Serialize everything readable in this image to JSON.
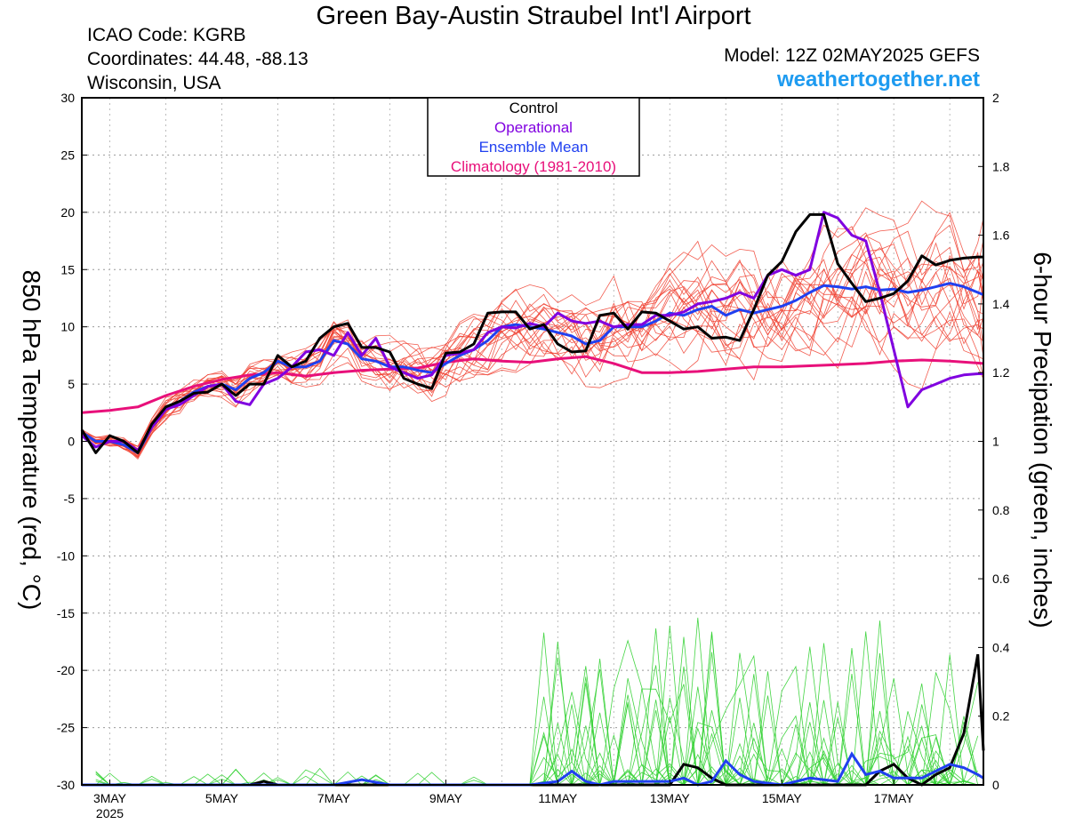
{
  "header": {
    "title": "Green Bay-Austin Straubel Int'l Airport",
    "icao": "ICAO Code: KGRB",
    "coordinates": "Coordinates: 44.48, -88.13",
    "location": "Wisconsin, USA",
    "model": "Model: 12Z 02MAY2025 GEFS",
    "site": "weathertogether.net"
  },
  "colors": {
    "members": "#f04030",
    "precip_members": "#30d030",
    "control": "#000000",
    "operational": "#8000e0",
    "ensemble_mean": "#2040f0",
    "climatology": "#e8107a",
    "site": "#1e9bf0"
  },
  "chart_data": {
    "type": "line",
    "ylabel_left": "850 hPa Temperature (red, °C)",
    "ylabel_right": "6-hour Precipation (green, inches)",
    "ylim_left": [
      -30,
      30
    ],
    "ylim_right": [
      0,
      2
    ],
    "yticks_left": [
      "30",
      "25",
      "20",
      "15",
      "10",
      "5",
      "0",
      "-5",
      "-10",
      "-15",
      "-20",
      "-25",
      "-30"
    ],
    "yticks_right": [
      "2",
      "1.8",
      "1.6",
      "1.4",
      "1.2",
      "1",
      "0.8",
      "0.6",
      "0.4",
      "0.2",
      "0"
    ],
    "xlim_days": [
      2.5,
      18.6
    ],
    "x_tick_labels": [
      {
        "day": 3,
        "label": "3MAY"
      },
      {
        "day": 5,
        "label": "5MAY"
      },
      {
        "day": 7,
        "label": "7MAY"
      },
      {
        "day": 9,
        "label": "9MAY"
      },
      {
        "day": 11,
        "label": "11MAY"
      },
      {
        "day": 13,
        "label": "13MAY"
      },
      {
        "day": 15,
        "label": "15MAY"
      },
      {
        "day": 17,
        "label": "17MAY"
      }
    ],
    "x_year_label": "2025",
    "legend": {
      "placement": "top-center",
      "entries": [
        "Control",
        "Operational",
        "Ensemble Mean",
        "Climatology (1981-2010)"
      ]
    },
    "series": [
      {
        "name": "Control",
        "x": [
          2.5,
          2.75,
          3.0,
          3.25,
          3.5,
          3.75,
          4.0,
          4.25,
          4.5,
          4.75,
          5.0,
          5.25,
          5.5,
          5.75,
          6.0,
          6.25,
          6.5,
          6.75,
          7.0,
          7.25,
          7.5,
          7.75,
          8.0,
          8.25,
          8.5,
          8.75,
          9.0,
          9.25,
          9.5,
          9.75,
          10.0,
          10.25,
          10.5,
          10.75,
          11.0,
          11.25,
          11.5,
          11.75,
          12.0,
          12.25,
          12.5,
          12.75,
          13.0,
          13.25,
          13.5,
          13.75,
          14.0,
          14.25,
          14.5,
          14.75,
          15.0,
          15.25,
          15.5,
          15.75,
          16.0,
          16.25,
          16.5,
          16.75,
          17.0,
          17.25,
          17.5,
          17.75,
          18.0,
          18.25,
          18.5,
          18.6
        ],
        "y": [
          1.0,
          -1.0,
          0.5,
          0.0,
          -1.0,
          1.5,
          3.0,
          3.5,
          4.2,
          4.3,
          5.0,
          4.0,
          5.0,
          5.0,
          7.5,
          6.5,
          7.0,
          9.0,
          10.0,
          10.3,
          8.2,
          8.2,
          7.8,
          5.5,
          5.0,
          4.6,
          7.7,
          7.8,
          8.5,
          11.2,
          11.3,
          11.3,
          9.8,
          10.2,
          8.5,
          7.8,
          7.9,
          11.0,
          11.2,
          9.8,
          11.3,
          11.2,
          10.5,
          9.8,
          10.0,
          9.0,
          9.1,
          8.8,
          11.5,
          14.5,
          15.7,
          18.3,
          19.8,
          19.8,
          15.5,
          13.8,
          12.2,
          12.5,
          12.9,
          14.0,
          16.2,
          15.4,
          15.8,
          16.0,
          16.1,
          16.1
        ]
      },
      {
        "name": "Operational",
        "x": [
          2.5,
          2.75,
          3.0,
          3.25,
          3.5,
          3.75,
          4.0,
          4.25,
          4.5,
          4.75,
          5.0,
          5.25,
          5.5,
          5.75,
          6.0,
          6.25,
          6.5,
          6.75,
          7.0,
          7.25,
          7.5,
          7.75,
          8.0,
          8.25,
          8.5,
          8.75,
          9.0,
          9.25,
          9.5,
          9.75,
          10.0,
          10.25,
          10.5,
          10.75,
          11.0,
          11.25,
          11.5,
          11.75,
          12.0,
          12.25,
          12.5,
          12.75,
          13.0,
          13.25,
          13.5,
          13.75,
          14.0,
          14.25,
          14.5,
          14.75,
          15.0,
          15.25,
          15.5,
          15.75,
          16.0,
          16.25,
          16.5,
          16.75,
          17.0,
          17.25,
          17.5,
          17.75,
          18.0,
          18.25,
          18.5,
          18.6
        ],
        "y": [
          0.5,
          -0.5,
          0.0,
          0.0,
          -0.8,
          1.2,
          2.8,
          3.2,
          4.0,
          4.8,
          5.0,
          3.5,
          3.2,
          5.0,
          5.5,
          6.5,
          7.8,
          8.0,
          7.5,
          9.5,
          7.5,
          9.0,
          6.5,
          6.0,
          5.5,
          5.8,
          7.5,
          7.7,
          8.0,
          9.5,
          10.0,
          9.9,
          10.3,
          10.0,
          11.2,
          10.5,
          10.3,
          10.5,
          10.0,
          10.2,
          10.2,
          11.0,
          11.0,
          11.3,
          12.0,
          12.2,
          12.5,
          13.0,
          12.5,
          14.5,
          15.0,
          14.5,
          15.0,
          20.0,
          19.5,
          18.0,
          17.5,
          13.0,
          8.0,
          3.0,
          4.5,
          5.0,
          5.5,
          5.8,
          5.9,
          5.9
        ]
      },
      {
        "name": "Ensemble Mean",
        "x": [
          2.5,
          2.75,
          3.0,
          3.25,
          3.5,
          3.75,
          4.0,
          4.25,
          4.5,
          4.75,
          5.0,
          5.25,
          5.5,
          5.75,
          6.0,
          6.25,
          6.5,
          6.75,
          7.0,
          7.25,
          7.5,
          7.75,
          8.0,
          8.25,
          8.5,
          8.75,
          9.0,
          9.25,
          9.5,
          9.75,
          10.0,
          10.25,
          10.5,
          10.75,
          11.0,
          11.25,
          11.5,
          11.75,
          12.0,
          12.25,
          12.5,
          12.75,
          13.0,
          13.25,
          13.5,
          13.75,
          14.0,
          14.25,
          14.5,
          14.75,
          15.0,
          15.25,
          15.5,
          15.75,
          16.0,
          16.25,
          16.5,
          16.75,
          17.0,
          17.25,
          17.5,
          17.75,
          18.0,
          18.25,
          18.5,
          18.6
        ],
        "y": [
          0.8,
          0.0,
          0.0,
          -0.3,
          -1.0,
          1.2,
          2.8,
          3.5,
          4.3,
          4.8,
          5.0,
          4.5,
          5.5,
          6.0,
          7.0,
          6.5,
          6.5,
          7.0,
          8.8,
          8.5,
          7.2,
          7.0,
          6.5,
          6.5,
          6.2,
          6.0,
          6.8,
          7.5,
          8.0,
          8.8,
          10.0,
          10.2,
          10.0,
          9.8,
          9.5,
          9.2,
          8.5,
          8.8,
          10.0,
          10.0,
          10.0,
          10.5,
          11.2,
          11.0,
          11.5,
          11.8,
          11.0,
          11.5,
          11.2,
          11.5,
          11.8,
          12.3,
          13.0,
          13.6,
          13.5,
          13.3,
          13.5,
          13.2,
          13.3,
          13.0,
          13.2,
          13.5,
          13.8,
          13.5,
          13.0,
          12.8
        ]
      },
      {
        "name": "Climatology (1981-2010)",
        "x": [
          2.5,
          3.0,
          3.5,
          4.0,
          4.5,
          5.0,
          5.5,
          6.0,
          6.5,
          7.0,
          7.5,
          8.0,
          8.5,
          9.0,
          9.5,
          10.0,
          10.5,
          11.0,
          11.5,
          12.0,
          12.5,
          13.0,
          13.5,
          14.0,
          14.5,
          15.0,
          15.5,
          16.0,
          16.5,
          17.0,
          17.5,
          18.0,
          18.6
        ],
        "y": [
          2.5,
          2.7,
          3.0,
          4.0,
          4.8,
          5.4,
          5.8,
          6.0,
          5.7,
          6.0,
          6.2,
          6.3,
          6.4,
          6.9,
          7.2,
          7.0,
          6.9,
          7.2,
          7.4,
          6.8,
          6.0,
          6.0,
          6.1,
          6.3,
          6.5,
          6.5,
          6.6,
          6.7,
          6.8,
          7.0,
          7.1,
          7.0,
          6.8
        ]
      }
    ],
    "precip_series": [
      {
        "name": "Control",
        "x": [
          2.5,
          3.0,
          4.0,
          5.0,
          5.5,
          5.75,
          6.0,
          7.0,
          8.0,
          9.0,
          10.0,
          11.0,
          12.0,
          12.5,
          13.0,
          13.25,
          13.5,
          13.75,
          14.0,
          14.5,
          15.0,
          15.5,
          16.0,
          16.5,
          16.75,
          17.0,
          17.25,
          17.5,
          17.75,
          18.0,
          18.25,
          18.5,
          18.6
        ],
        "y": [
          0,
          0,
          0,
          0,
          0,
          0.01,
          0,
          0,
          0,
          0,
          0,
          0,
          0,
          0,
          0,
          0.06,
          0.05,
          0.02,
          0,
          0,
          0,
          0,
          0,
          0,
          0.04,
          0.06,
          0.02,
          0,
          0.03,
          0.05,
          0.15,
          0.38,
          0.1
        ]
      },
      {
        "name": "Ensemble Mean",
        "x": [
          2.5,
          3.0,
          4.0,
          5.0,
          6.0,
          7.0,
          7.5,
          8.0,
          9.0,
          10.0,
          10.5,
          11.0,
          11.25,
          11.5,
          11.75,
          12.0,
          12.5,
          13.0,
          13.25,
          13.5,
          13.75,
          14.0,
          14.25,
          14.5,
          15.0,
          15.5,
          16.0,
          16.25,
          16.5,
          16.75,
          17.0,
          17.5,
          17.75,
          18.0,
          18.25,
          18.5,
          18.6
        ],
        "y": [
          0,
          0,
          0,
          0,
          0,
          0,
          0.015,
          0,
          0,
          0,
          0,
          0.01,
          0.04,
          0.01,
          0,
          0.01,
          0.01,
          0.01,
          0.02,
          0,
          0.01,
          0.07,
          0.03,
          0.01,
          0,
          0.02,
          0.01,
          0.09,
          0.03,
          0.04,
          0.02,
          0.02,
          0.04,
          0.06,
          0.05,
          0.03,
          0.02
        ]
      }
    ]
  }
}
